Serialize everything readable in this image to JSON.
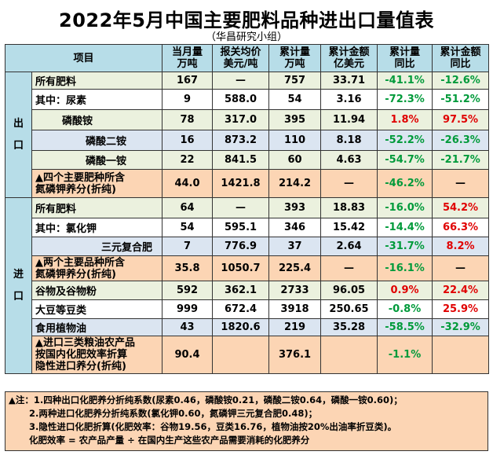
{
  "title": "2022年5月中国主要肥料品种进出口量值表",
  "subtitle": "（华昌研究小组）",
  "headers": {
    "item": "项目",
    "month_qty": "当月量\n万吨",
    "price": "报关均价\n美元/吨",
    "cum_qty": "累计量\n万吨",
    "cum_amt": "累计金额\n亿美元",
    "cum_qty_yoy": "累计量\n同比",
    "cum_amt_yoy": "累计金额\n同比"
  },
  "export": {
    "label": "出\n口",
    "rows": [
      {
        "item": "所有肥料",
        "month_qty": "167",
        "price": "—",
        "cum_qty": "757",
        "cum_amt": "33.71",
        "qty_yoy": "-41.1%",
        "amt_yoy": "-12.6%"
      },
      {
        "item": "其中：尿素",
        "month_qty": "9",
        "price": "588.0",
        "cum_qty": "54",
        "cum_amt": "3.16",
        "qty_yoy": "-72.3%",
        "amt_yoy": "-51.2%"
      },
      {
        "item": "磷酸铵",
        "month_qty": "78",
        "price": "317.0",
        "cum_qty": "395",
        "cum_amt": "11.94",
        "qty_yoy": "1.8%",
        "amt_yoy": "97.5%"
      },
      {
        "item": "磷酸二铵",
        "month_qty": "16",
        "price": "873.2",
        "cum_qty": "110",
        "cum_amt": "8.18",
        "qty_yoy": "-52.2%",
        "amt_yoy": "-26.3%"
      },
      {
        "item": "磷酸一铵",
        "month_qty": "22",
        "price": "841.5",
        "cum_qty": "60",
        "cum_amt": "4.63",
        "qty_yoy": "-54.7%",
        "amt_yoy": "-21.7%"
      },
      {
        "item": "▲四个主要肥种所含\n氮磷钾养分(折纯)",
        "month_qty": "44.0",
        "price": "1421.8",
        "cum_qty": "214.2",
        "cum_amt": "—",
        "qty_yoy": "-46.2%",
        "amt_yoy": "—"
      }
    ]
  },
  "import": {
    "label": "进\n口",
    "rows": [
      {
        "item": "所有肥料",
        "month_qty": "64",
        "price": "—",
        "cum_qty": "393",
        "cum_amt": "18.83",
        "qty_yoy": "-16.0%",
        "amt_yoy": "54.2%"
      },
      {
        "item": "其中：氯化钾",
        "month_qty": "54",
        "price": "595.1",
        "cum_qty": "346",
        "cum_amt": "15.42",
        "qty_yoy": "-14.4%",
        "amt_yoy": "66.3%"
      },
      {
        "item": "三元复合肥",
        "month_qty": "7",
        "price": "776.9",
        "cum_qty": "37",
        "cum_amt": "2.64",
        "qty_yoy": "-31.7%",
        "amt_yoy": "8.2%"
      },
      {
        "item": "▲两个主要品种所含\n氮磷钾养分(折纯)",
        "month_qty": "35.8",
        "price": "1050.7",
        "cum_qty": "225.4",
        "cum_amt": "—",
        "qty_yoy": "-16.1%",
        "amt_yoy": "—"
      },
      {
        "item": "谷物及谷物粉",
        "month_qty": "592",
        "price": "362.1",
        "cum_qty": "2733",
        "cum_amt": "96.05",
        "qty_yoy": "0.9%",
        "amt_yoy": "22.4%"
      },
      {
        "item": "大豆等豆类",
        "month_qty": "999",
        "price": "672.4",
        "cum_qty": "3918",
        "cum_amt": "250.65",
        "qty_yoy": "-0.8%",
        "amt_yoy": "25.9%"
      },
      {
        "item": "食用植物油",
        "month_qty": "43",
        "price": "1820.6",
        "cum_qty": "219",
        "cum_amt": "35.28",
        "qty_yoy": "-58.5%",
        "amt_yoy": "-32.9%"
      },
      {
        "item": "▲进口三类粮油农产品\n按国内化肥效率折算\n隐性进口养分(折纯)",
        "month_qty": "90.4",
        "price": "",
        "cum_qty": "376.1",
        "cum_amt": "",
        "qty_yoy": "-1.1%",
        "amt_yoy": ""
      }
    ]
  },
  "notes": [
    "▲注：1.四种出口化肥养分折纯系数(尿素0.46，磷酸铵0.21，磷酸二铵0.64，磷酸一铵0.60)；",
    "2.两种进口化肥养分折纯系数(氯化钾0.60，氮磷钾三元复合肥0.48)；",
    "3.隐性进口化肥折算(化肥效率：谷物19.56，豆类16.76，植物油按20%出油率折豆类)。",
    "化肥效率 = 农产品产量 ÷ 在国内生产这些农产品需要消耗的化肥养分"
  ],
  "colors": {
    "positive": "#e00000",
    "negative": "#009a3a",
    "header_bg": "#b7dde8",
    "highlight_bg": "#fcd5b4"
  }
}
